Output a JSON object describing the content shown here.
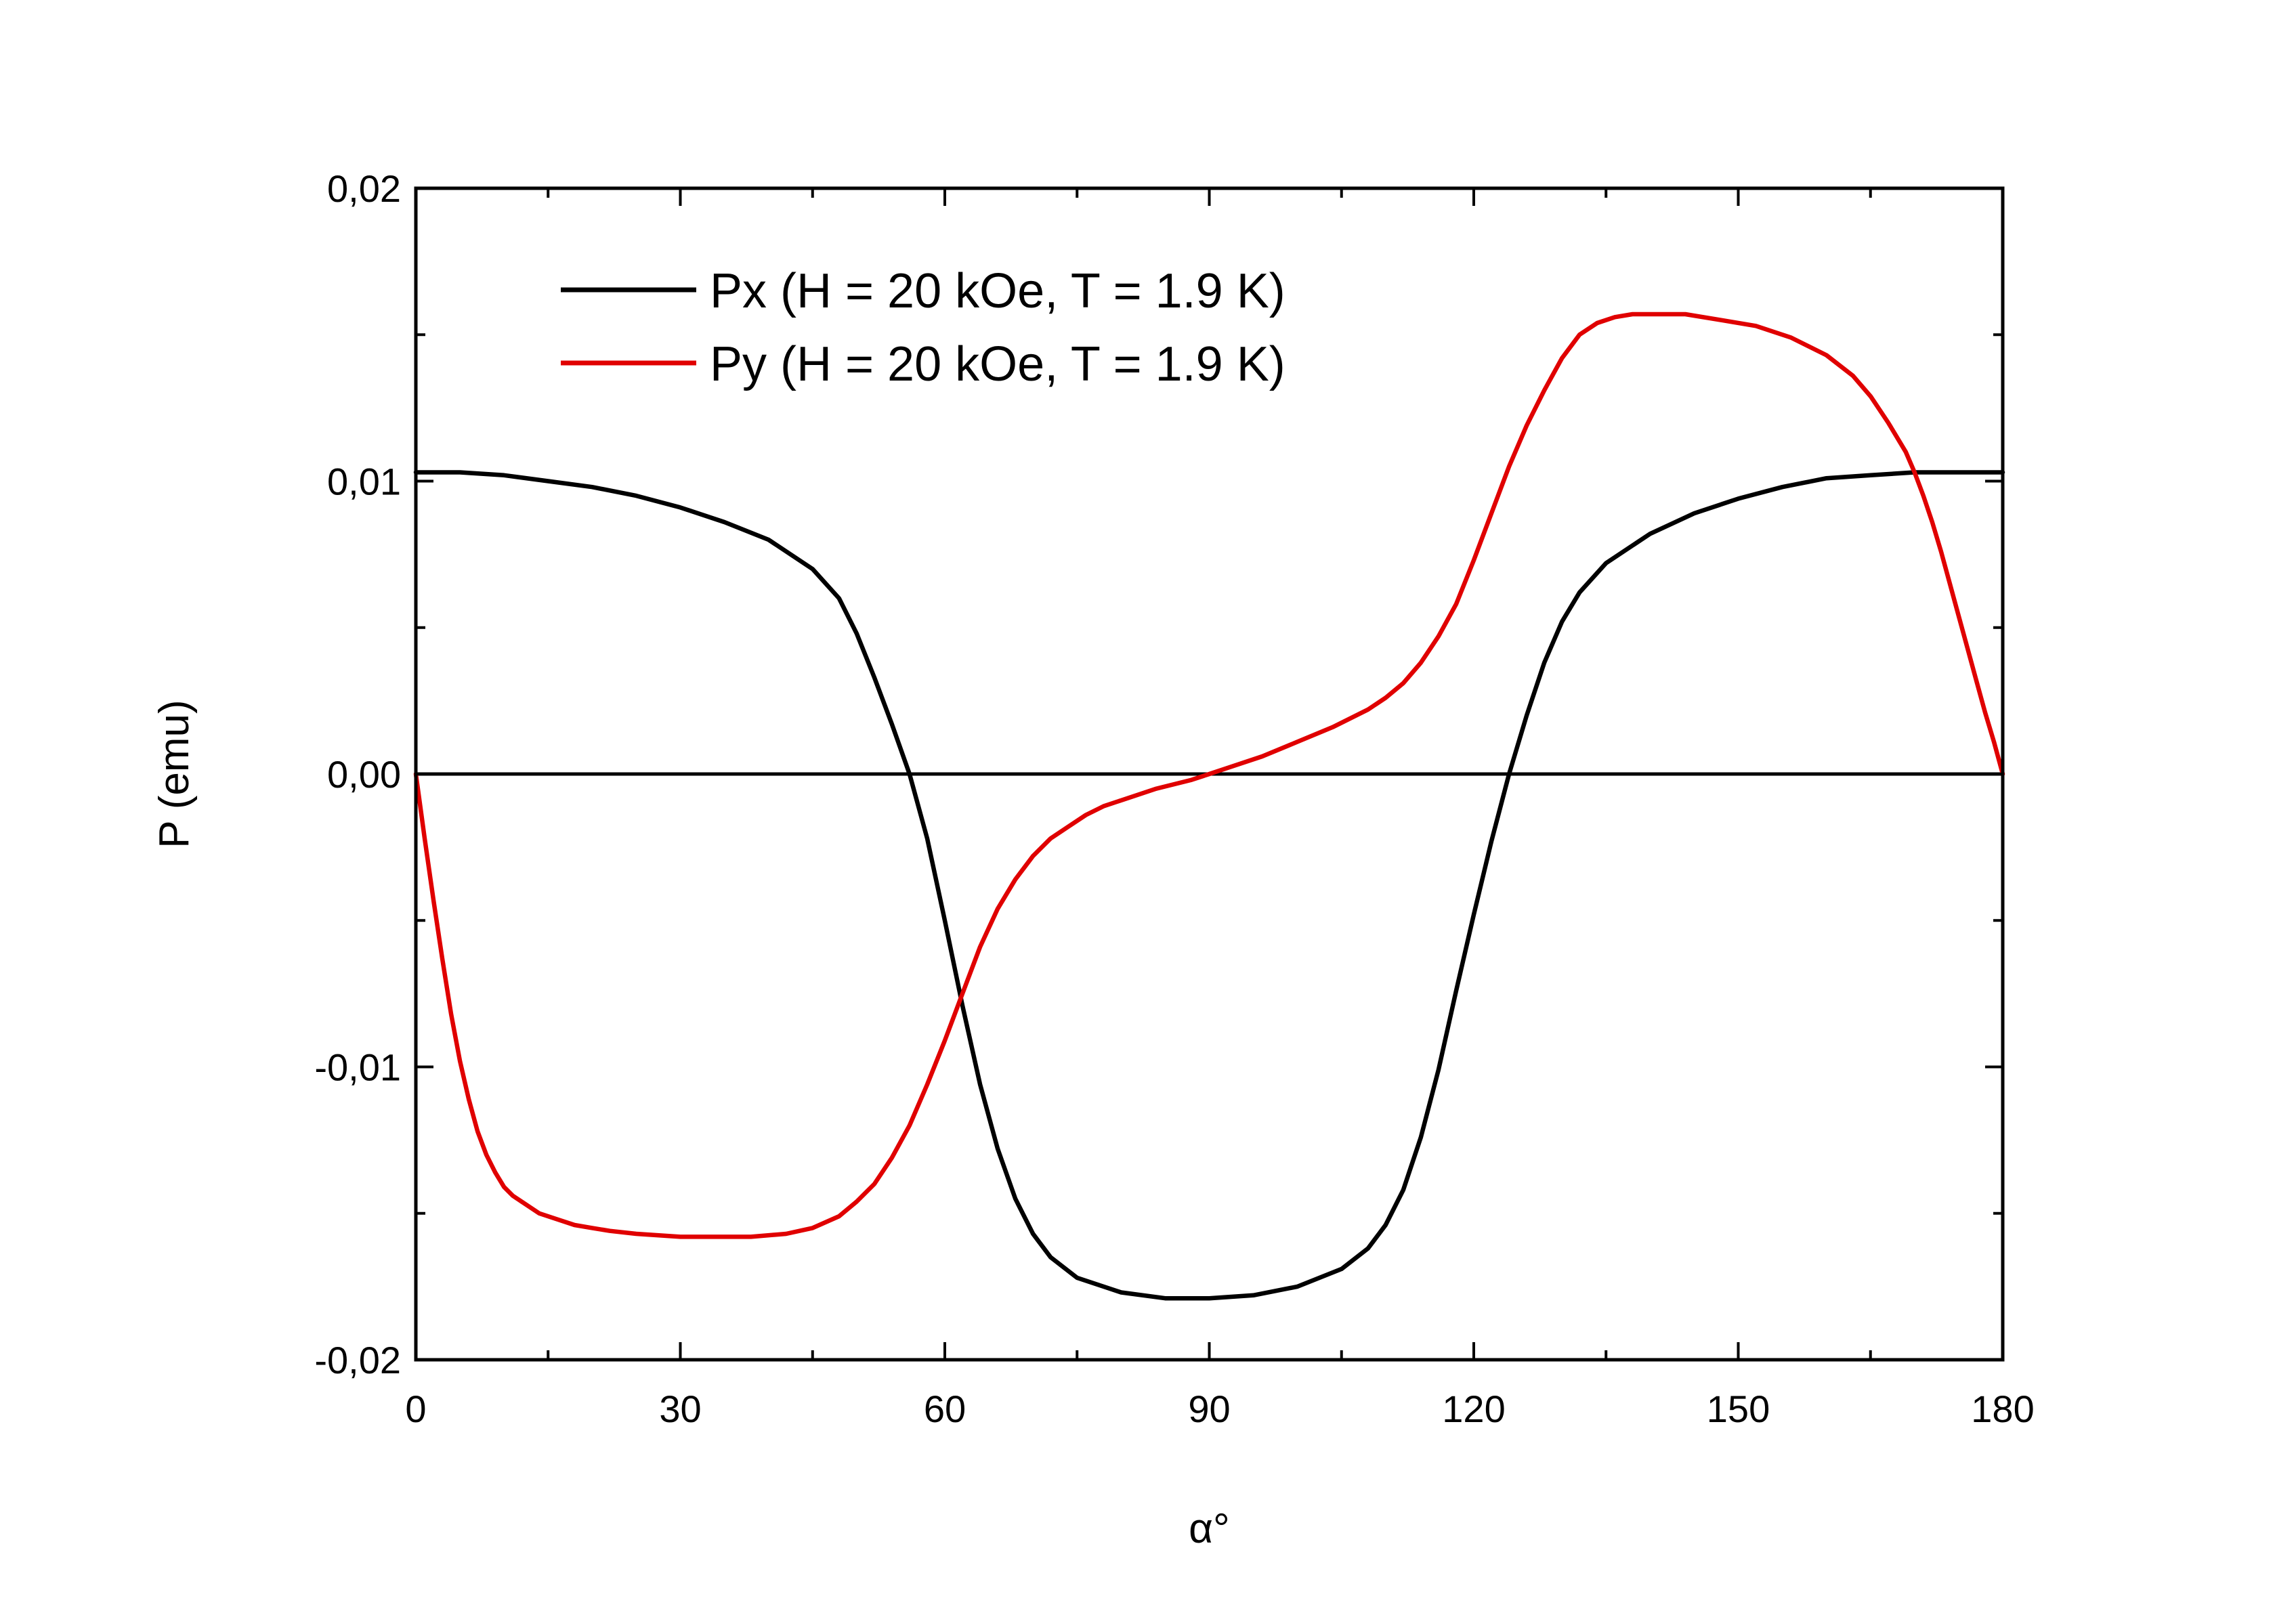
{
  "chart_data": {
    "type": "line",
    "title": "",
    "xlabel": "α°",
    "ylabel": "P (emu)",
    "xlim": [
      0,
      180
    ],
    "ylim": [
      -0.02,
      0.02
    ],
    "x_ticks": [
      0,
      30,
      60,
      90,
      120,
      150,
      180
    ],
    "x_tick_labels": [
      "0",
      "30",
      "60",
      "90",
      "120",
      "150",
      "180"
    ],
    "y_ticks": [
      -0.02,
      -0.01,
      0.0,
      0.01,
      0.02
    ],
    "y_tick_labels": [
      "-0,02",
      "-0,01",
      "0,00",
      "0,01",
      "0,02"
    ],
    "grid": false,
    "legend_position": "top-left",
    "zero_line": true,
    "series": [
      {
        "name": "Px (H = 20 kOe, T = 1.9 K)",
        "color": "#000000",
        "x": [
          0,
          5,
          10,
          15,
          20,
          25,
          30,
          35,
          40,
          45,
          48,
          50,
          52,
          54,
          56,
          58,
          60,
          62,
          64,
          66,
          68,
          70,
          72,
          75,
          80,
          85,
          90,
          95,
          100,
          105,
          108,
          110,
          112,
          114,
          116,
          118,
          120,
          122,
          124,
          126,
          128,
          130,
          132,
          135,
          140,
          145,
          150,
          155,
          160,
          165,
          170,
          175,
          180
        ],
        "y": [
          0.0103,
          0.0103,
          0.0102,
          0.01,
          0.0098,
          0.0095,
          0.0091,
          0.0086,
          0.008,
          0.007,
          0.006,
          0.0048,
          0.0033,
          0.0017,
          0.0,
          -0.0022,
          -0.005,
          -0.0079,
          -0.0106,
          -0.0128,
          -0.0145,
          -0.0157,
          -0.0165,
          -0.0172,
          -0.0177,
          -0.0179,
          -0.0179,
          -0.0178,
          -0.0175,
          -0.0169,
          -0.0162,
          -0.0154,
          -0.0142,
          -0.0124,
          -0.0101,
          -0.0074,
          -0.0048,
          -0.0023,
          0.0,
          0.002,
          0.0038,
          0.0052,
          0.0062,
          0.0072,
          0.0082,
          0.0089,
          0.0094,
          0.0098,
          0.0101,
          0.0102,
          0.0103,
          0.0103,
          0.0103
        ]
      },
      {
        "name": "Py (H = 20 kOe, T = 1.9 K)",
        "color": "#e00000",
        "x": [
          0,
          1,
          2,
          3,
          4,
          5,
          6,
          7,
          8,
          9,
          10,
          11,
          12,
          14,
          16,
          18,
          20,
          22,
          25,
          30,
          35,
          38,
          42,
          45,
          48,
          50,
          52,
          54,
          56,
          58,
          60,
          62,
          64,
          66,
          68,
          70,
          72,
          74,
          76,
          78,
          80,
          84,
          88,
          90,
          92,
          96,
          100,
          104,
          108,
          110,
          112,
          114,
          116,
          118,
          120,
          122,
          124,
          126,
          128,
          130,
          132,
          134,
          136,
          138,
          141,
          144,
          148,
          152,
          156,
          160,
          163,
          165,
          167,
          169,
          170,
          171,
          172,
          173,
          174,
          175,
          176,
          177,
          178,
          179,
          180
        ],
        "y": [
          0.0,
          -0.0022,
          -0.0043,
          -0.0063,
          -0.0082,
          -0.0098,
          -0.0111,
          -0.0122,
          -0.013,
          -0.0136,
          -0.0141,
          -0.0144,
          -0.0146,
          -0.015,
          -0.0152,
          -0.0154,
          -0.0155,
          -0.0156,
          -0.0157,
          -0.0158,
          -0.0158,
          -0.0158,
          -0.0157,
          -0.0155,
          -0.0151,
          -0.0146,
          -0.014,
          -0.0131,
          -0.012,
          -0.0106,
          -0.0091,
          -0.0075,
          -0.0059,
          -0.0046,
          -0.0036,
          -0.0028,
          -0.0022,
          -0.0018,
          -0.0014,
          -0.0011,
          -0.0009,
          -0.0005,
          -0.0002,
          0.0,
          0.0002,
          0.0006,
          0.0011,
          0.0016,
          0.0022,
          0.0026,
          0.0031,
          0.0038,
          0.0047,
          0.0058,
          0.0073,
          0.0089,
          0.0105,
          0.0119,
          0.0131,
          0.0142,
          0.015,
          0.0154,
          0.0156,
          0.0157,
          0.0157,
          0.0157,
          0.0155,
          0.0153,
          0.0149,
          0.0143,
          0.0136,
          0.0129,
          0.012,
          0.011,
          0.0103,
          0.0095,
          0.0086,
          0.0076,
          0.0065,
          0.0054,
          0.0043,
          0.0032,
          0.0021,
          0.0011,
          0.0
        ]
      }
    ]
  }
}
